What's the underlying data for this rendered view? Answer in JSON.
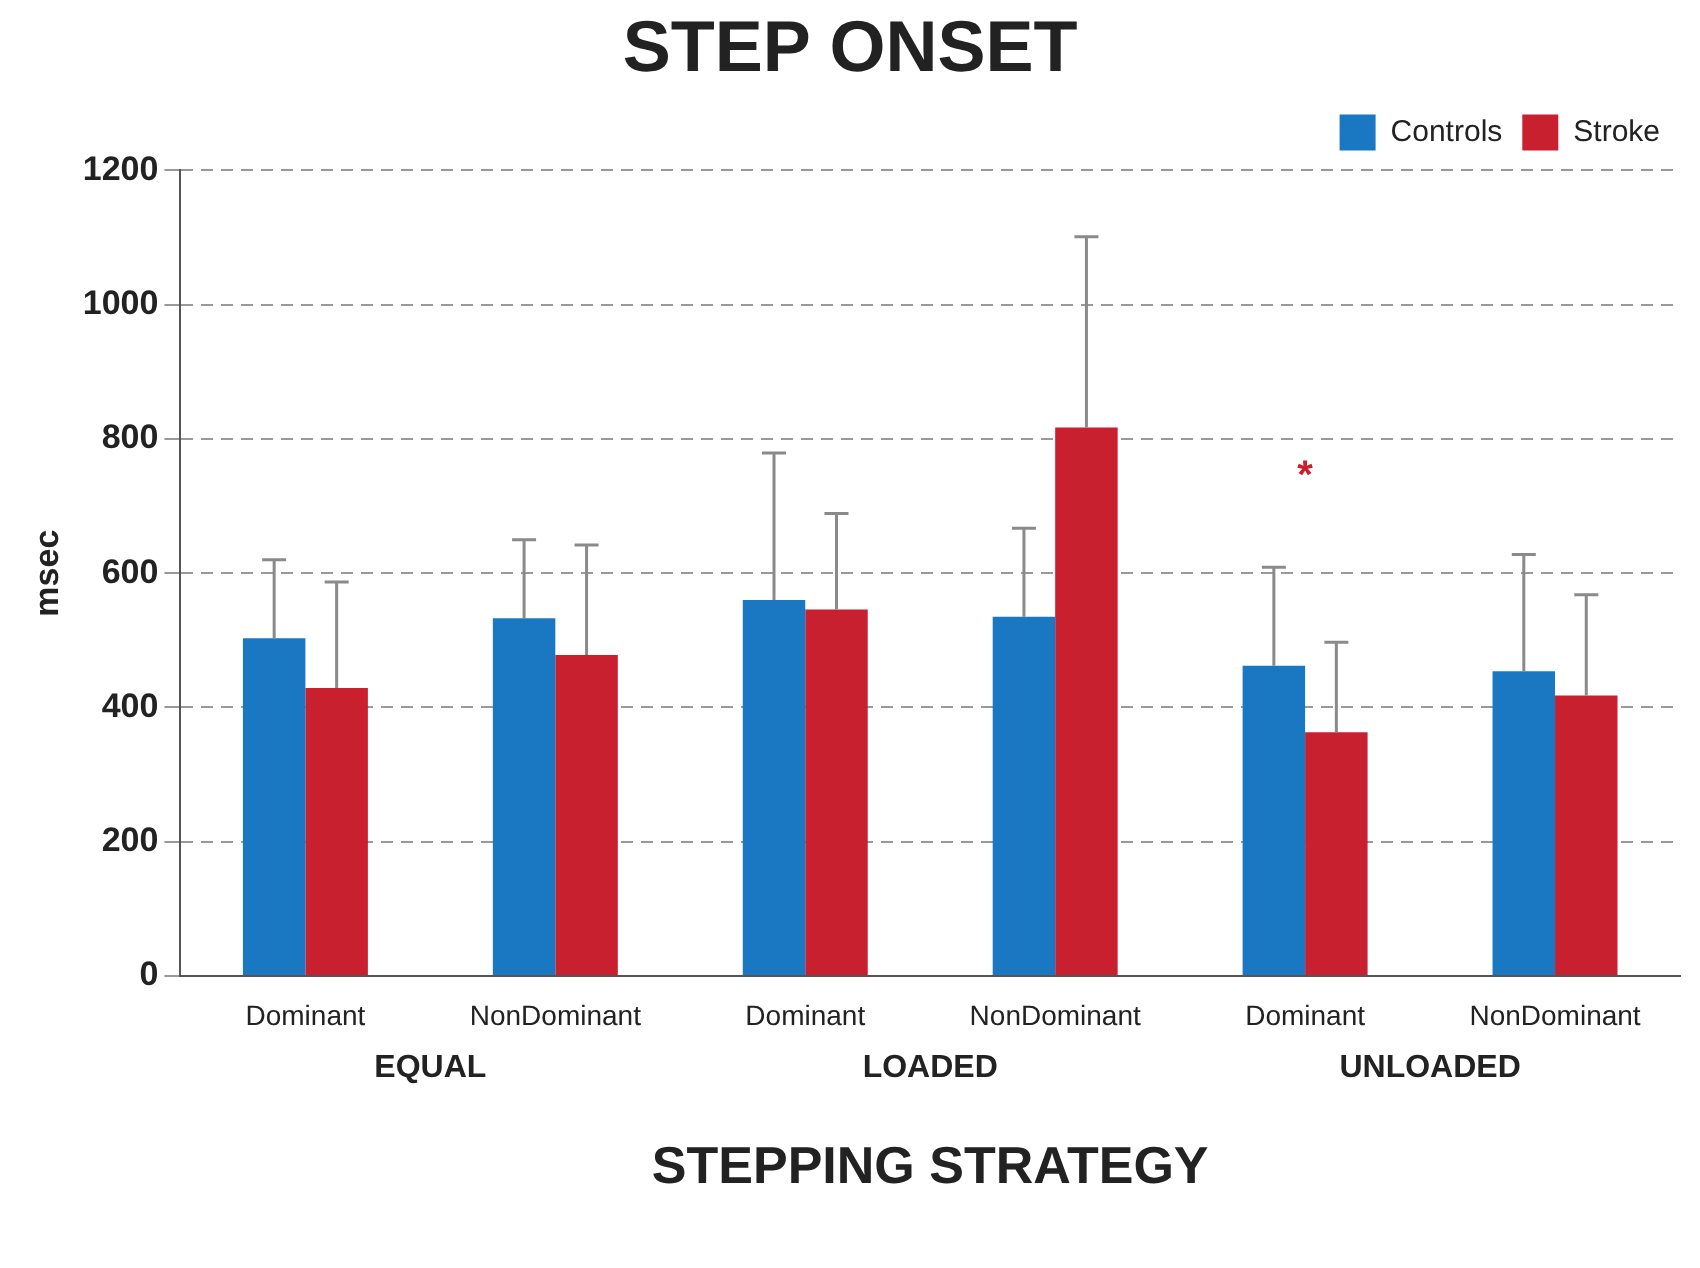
{
  "chart_data": {
    "type": "bar",
    "title": "STEP ONSET",
    "xlabel": "STEPPING STRATEGY",
    "ylabel": "msec",
    "categories": [
      "Dominant",
      "NonDominant",
      "Dominant",
      "NonDominant",
      "Dominant",
      "NonDominant"
    ],
    "series": [
      {
        "name": "Controls",
        "color": "#1a78c2",
        "values": [
          503,
          533,
          560,
          535,
          462,
          454
        ],
        "errors": [
          [
            503,
            620
          ],
          [
            533,
            650
          ],
          [
            560,
            779
          ],
          [
            535,
            667
          ],
          [
            462,
            609
          ],
          [
            454,
            628
          ]
        ]
      },
      {
        "name": "Stroke",
        "color": "#c8202f",
        "values": [
          429,
          478,
          546,
          817,
          363,
          418
        ],
        "errors": [
          [
            429,
            587
          ],
          [
            478,
            642
          ],
          [
            546,
            689
          ],
          [
            817,
            1101
          ],
          [
            363,
            497
          ],
          [
            418,
            568
          ]
        ]
      }
    ],
    "ylim": [
      0,
      1200
    ],
    "yticks": [
      0,
      200,
      400,
      600,
      800,
      1000,
      1200
    ],
    "grid": "y",
    "legend": "top right",
    "annotations": [
      "EQUAL",
      "LOADED",
      "UNLOADED",
      "*"
    ]
  }
}
